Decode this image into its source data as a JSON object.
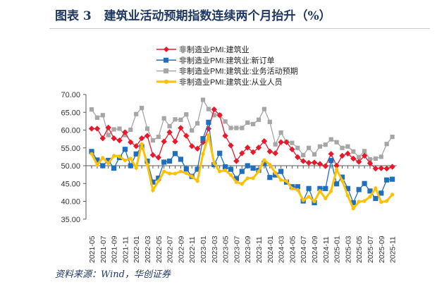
{
  "header": {
    "title": "图表 3   建筑业活动预期指数连续两个月抬升（%）"
  },
  "footer": {
    "source": "资料来源：Wind，华创证券"
  },
  "chart_data": {
    "type": "line",
    "title": "",
    "xlabel": "",
    "ylabel": "",
    "ylim": [
      35,
      70
    ],
    "yticks": [
      "70.00",
      "65.00",
      "60.00",
      "55.00",
      "50.00",
      "45.00",
      "40.00",
      "35.00"
    ],
    "x": [
      "2021-05",
      "2021-06",
      "2021-07",
      "2021-08",
      "2021-09",
      "2021-10",
      "2021-11",
      "2021-12",
      "2022-01",
      "2022-02",
      "2022-03",
      "2022-04",
      "2022-05",
      "2022-06",
      "2022-07",
      "2022-08",
      "2022-09",
      "2022-10",
      "2022-11",
      "2022-12",
      "2023-01",
      "2023-02",
      "2023-03",
      "2023-04",
      "2023-05",
      "2023-06",
      "2023-07",
      "2023-08",
      "2023-09",
      "2023-10",
      "2023-11",
      "2023-12",
      "2024-01",
      "2024-02",
      "2024-03",
      "2024-04",
      "2024-05",
      "2024-06",
      "2024-07",
      "2024-08",
      "2024-09",
      "2024-10",
      "2024-11",
      "2024-12",
      "2025-01",
      "2025-02",
      "2025-03",
      "2025-04",
      "2025-05",
      "2025-06",
      "2025-07",
      "2025-08",
      "2025-09",
      "2025-10",
      "2025-11"
    ],
    "xtick_labels": [
      "2021-05",
      "2021-07",
      "2021-09",
      "2021-11",
      "2022-01",
      "2022-03",
      "2022-05",
      "2022-07",
      "2022-09",
      "2022-11",
      "2023-01",
      "2023-03",
      "2023-05",
      "2023-07",
      "2023-09",
      "2023-11",
      "2024-01",
      "2024-03",
      "2024-05",
      "2024-07",
      "2024-09",
      "2024-11",
      "2025-01",
      "2025-03",
      "2025-05",
      "2025-07",
      "2025-09",
      "2025-11"
    ],
    "reference_line": 50,
    "legend_position": "top-center",
    "series": [
      {
        "name": "非制造业PMI:建筑业",
        "color": "#e8192c",
        "marker": "diamond",
        "values": [
          60.4,
          60.4,
          57.7,
          60.7,
          57.7,
          57.1,
          59.4,
          56.6,
          55.5,
          57.7,
          58.4,
          53.0,
          52.3,
          56.8,
          59.4,
          56.8,
          60.6,
          58.4,
          55.5,
          54.8,
          56.6,
          60.4,
          65.8,
          64.2,
          58.4,
          55.7,
          51.3,
          53.5,
          55.1,
          53.8,
          55.1,
          56.9,
          54.0,
          53.5,
          56.6,
          56.6,
          54.6,
          52.4,
          51.3,
          50.8,
          50.9,
          50.5,
          49.9,
          53.3,
          50.0,
          52.8,
          53.4,
          52.0,
          51.1,
          52.8,
          50.7,
          49.2,
          49.3,
          49.2,
          49.7
        ]
      },
      {
        "name": "非制造业PMI:建筑业:新订单",
        "color": "#1f6fc0",
        "marker": "square",
        "values": [
          54.0,
          51.6,
          50.0,
          51.5,
          49.3,
          52.3,
          54.6,
          50.0,
          53.3,
          55.3,
          51.3,
          45.4,
          46.5,
          51.0,
          51.3,
          53.4,
          51.8,
          49.1,
          47.0,
          49.0,
          57.6,
          62.2,
          50.3,
          53.5,
          49.7,
          49.0,
          46.4,
          48.4,
          50.0,
          49.3,
          48.7,
          50.7,
          46.7,
          47.4,
          48.4,
          45.4,
          44.1,
          44.1,
          40.1,
          43.6,
          39.6,
          43.6,
          43.6,
          51.5,
          44.9,
          46.8,
          43.6,
          39.6,
          43.3,
          45.0,
          42.9,
          40.8,
          42.3,
          46.0,
          46.2
        ]
      },
      {
        "name": "非制造业PMI:建筑业:业务活动预期",
        "color": "#a6a6a6",
        "marker": "square",
        "values": [
          65.8,
          63.5,
          64.2,
          58.6,
          60.2,
          60.4,
          58.6,
          60.1,
          64.5,
          66.2,
          60.4,
          57.1,
          58.1,
          63.3,
          61.1,
          63.0,
          62.9,
          64.4,
          59.9,
          61.9,
          68.5,
          65.9,
          64.2,
          64.2,
          62.4,
          60.6,
          60.6,
          60.6,
          62.1,
          61.7,
          62.9,
          65.9,
          62.3,
          56.0,
          59.3,
          56.7,
          56.4,
          55.0,
          53.0,
          55.0,
          53.2,
          55.4,
          55.9,
          57.4,
          56.6,
          55.0,
          55.4,
          54.0,
          52.4,
          54.1,
          51.8,
          52.0,
          52.5,
          56.1,
          58.1
        ]
      },
      {
        "name": "非制造业PMI:建筑业:从业人员",
        "color": "#ffc000",
        "marker": "circle",
        "values": [
          53.3,
          50.3,
          52.2,
          50.7,
          52.8,
          52.6,
          51.5,
          52.0,
          49.4,
          56.1,
          50.3,
          43.1,
          45.7,
          48.4,
          47.8,
          47.8,
          48.4,
          47.9,
          47.0,
          45.7,
          53.3,
          58.6,
          50.7,
          48.4,
          48.7,
          47.4,
          45.4,
          44.9,
          46.5,
          46.5,
          48.4,
          51.6,
          50.3,
          48.0,
          46.0,
          45.7,
          43.6,
          43.2,
          40.3,
          41.3,
          40.0,
          42.9,
          40.8,
          42.9,
          49.0,
          45.8,
          41.6,
          38.0,
          39.9,
          40.1,
          41.3,
          43.7,
          39.8,
          40.1,
          41.9
        ]
      }
    ]
  }
}
